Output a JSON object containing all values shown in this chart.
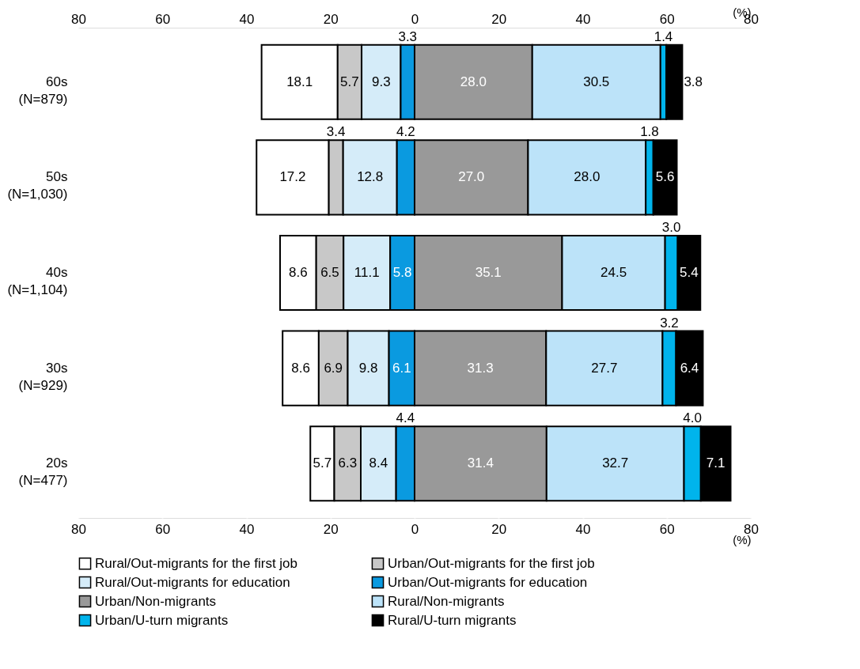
{
  "chart_data": {
    "type": "bar",
    "orientation": "horizontal",
    "categories": [
      "60s (N=879)",
      "50s (N=1,030)",
      "40s (N=1,104)",
      "30s (N=929)",
      "20s (N=477)"
    ],
    "series": [
      {
        "name": "Rural/Out-migrants for the first job",
        "color": "#ffffff",
        "values": [
          18.1,
          17.2,
          8.6,
          8.6,
          5.7
        ],
        "base": [
          -36.4,
          -37.6,
          -32.0,
          -31.4,
          -24.8
        ],
        "value_labels": [
          "18.1",
          "17.2",
          "8.6",
          "8.6",
          "5.7"
        ]
      },
      {
        "name": "Urban/Out-migrants for the first job",
        "color": "#c8c8c8",
        "values": [
          5.7,
          3.4,
          6.5,
          6.9,
          6.3
        ],
        "base": [
          -18.3,
          -20.4,
          -23.4,
          -22.8,
          -19.1
        ],
        "value_labels": [
          "5.7",
          "3.4",
          "6.5",
          "6.9",
          "6.3"
        ]
      },
      {
        "name": "Rural/Out-migrants for education",
        "color": "#d5ecf9",
        "values": [
          9.3,
          12.8,
          11.1,
          9.8,
          8.4
        ],
        "base": [
          -12.6,
          -17.0,
          -16.9,
          -15.9,
          -12.8
        ],
        "value_labels": [
          "9.3",
          "12.8",
          "11.1",
          "9.8",
          "8.4"
        ]
      },
      {
        "name": "Urban/Out-migrants for education",
        "color": "#0a9ae0",
        "values": [
          3.3,
          4.2,
          5.8,
          6.1,
          4.4
        ],
        "base": [
          -3.3,
          -4.2,
          -5.8,
          -6.1,
          -4.4
        ],
        "value_labels": [
          "3.3",
          "4.2",
          "5.8",
          "6.1",
          "4.4"
        ]
      },
      {
        "name": "Urban/Non-migrants",
        "color": "#999999",
        "values": [
          28.0,
          27.0,
          35.1,
          31.3,
          31.4
        ],
        "base": [
          0,
          0,
          0,
          0,
          0
        ],
        "value_labels": [
          "28.0",
          "27.0",
          "35.1",
          "31.3",
          "31.4"
        ]
      },
      {
        "name": "Rural/Non-migrants",
        "color": "#bce3f9",
        "values": [
          30.5,
          28.0,
          24.5,
          27.7,
          32.7
        ],
        "base": [
          28.0,
          27.0,
          35.1,
          31.3,
          31.4
        ],
        "value_labels": [
          "30.5",
          "28.0",
          "24.5",
          "27.7",
          "32.7"
        ]
      },
      {
        "name": "Urban/U-turn migrants",
        "color": "#00b4ec",
        "values": [
          1.4,
          1.8,
          3.0,
          3.2,
          4.0
        ],
        "base": [
          58.5,
          55.0,
          59.6,
          59.0,
          64.1
        ],
        "value_labels": [
          "1.4",
          "1.8",
          "3.0",
          "3.2",
          "4.0"
        ]
      },
      {
        "name": "Rural/U-turn migrants",
        "color": "#000000",
        "values": [
          3.8,
          5.6,
          5.4,
          6.4,
          7.1
        ],
        "base": [
          59.9,
          56.8,
          62.6,
          62.2,
          68.1
        ],
        "value_labels": [
          "3.8",
          "5.6",
          "5.4",
          "6.4",
          "7.1"
        ]
      }
    ],
    "xlabel": "(%)",
    "x2label": "(%)",
    "xlim": [
      -80,
      80
    ],
    "xticks": [
      {
        "value": -80,
        "label": "80"
      },
      {
        "value": -60,
        "label": "60"
      },
      {
        "value": -40,
        "label": "40"
      },
      {
        "value": -20,
        "label": "20"
      },
      0,
      20,
      40,
      60,
      80
    ],
    "x2lim": [
      -80,
      80
    ],
    "x2ticks": [
      {
        "value": -80,
        "label": "80"
      },
      {
        "value": -60,
        "label": "60"
      },
      {
        "value": -40,
        "label": "40"
      },
      {
        "value": -20,
        "label": "20"
      },
      0,
      20,
      40,
      60,
      80
    ],
    "grid": "x",
    "legend": "bottom"
  }
}
